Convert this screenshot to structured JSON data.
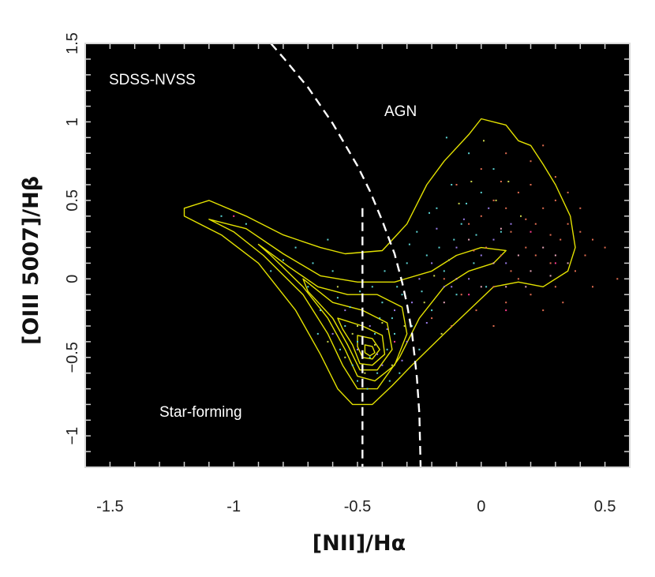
{
  "chart_data": {
    "type": "scatter",
    "title": "",
    "xlabel": "[NII]/Hα",
    "ylabel": "[OIII 5007]/Hβ",
    "xlim": [
      -1.6,
      0.6
    ],
    "ylim": [
      -1.2,
      1.5
    ],
    "x_ticks": [
      "-1.5",
      "-1",
      "-0.5",
      "0",
      "0.5"
    ],
    "x_tick_values": [
      -1.5,
      -1.0,
      -0.5,
      0.0,
      0.5
    ],
    "y_ticks": [
      "−1",
      "−0.5",
      "0",
      "0.5",
      "1",
      "1.5"
    ],
    "y_tick_values": [
      -1.0,
      -0.5,
      0.0,
      0.5,
      1.0,
      1.5
    ],
    "background": "#000000",
    "grid": false,
    "annotations": {
      "sample": "SDSS-NVSS",
      "agn_region": "AGN",
      "sf_region": "Star-forming"
    },
    "dividing_lines": [
      {
        "name": "kauffmann",
        "style": "dashed",
        "color": "#ffffff",
        "x": [
          -1.2,
          -1.0,
          -0.9,
          -0.8,
          -0.7,
          -0.6,
          -0.5,
          -0.45,
          -0.4,
          -0.35,
          -0.3,
          -0.25
        ],
        "y": [
          -1.2,
          -1.2,
          -1.2,
          -1.2,
          -1.2,
          -1.2,
          -1.2,
          -1.2,
          -1.2,
          -1.2,
          -1.2,
          -1.2
        ]
      },
      {
        "name": "kewley",
        "style": "dashed",
        "color": "#ffffff",
        "x": [
          -0.85,
          -0.8,
          -0.7,
          -0.6,
          -0.5,
          -0.45,
          -0.4,
          -0.35,
          -0.32,
          -0.3,
          -0.28,
          -0.26,
          -0.25,
          -0.245
        ],
        "y": [
          1.5,
          1.41,
          1.22,
          0.99,
          0.72,
          0.56,
          0.37,
          0.16,
          -0.02,
          -0.16,
          -0.34,
          -0.63,
          -0.86,
          -1.2
        ]
      },
      {
        "name": "vertical",
        "style": "dashed",
        "color": "#ffffff",
        "x": [
          -0.48,
          -0.48
        ],
        "y": [
          0.45,
          -1.2
        ]
      }
    ],
    "contours": {
      "color": "#e3e100",
      "levels": [
        [
          [
            -1.2,
            0.45
          ],
          [
            -1.1,
            0.5
          ],
          [
            -0.95,
            0.4
          ],
          [
            -0.8,
            0.28
          ],
          [
            -0.65,
            0.2
          ],
          [
            -0.55,
            0.16
          ],
          [
            -0.4,
            0.18
          ],
          [
            -0.3,
            0.35
          ],
          [
            -0.22,
            0.6
          ],
          [
            -0.15,
            0.75
          ],
          [
            -0.05,
            0.92
          ],
          [
            0.0,
            1.02
          ],
          [
            0.1,
            0.98
          ],
          [
            0.15,
            0.88
          ],
          [
            0.2,
            0.85
          ],
          [
            0.25,
            0.73
          ],
          [
            0.3,
            0.6
          ],
          [
            0.36,
            0.4
          ],
          [
            0.38,
            0.2
          ],
          [
            0.35,
            0.05
          ],
          [
            0.25,
            -0.05
          ],
          [
            0.15,
            -0.02
          ],
          [
            0.05,
            -0.05
          ],
          [
            -0.05,
            -0.2
          ],
          [
            -0.15,
            -0.35
          ],
          [
            -0.28,
            -0.55
          ],
          [
            -0.36,
            -0.68
          ],
          [
            -0.44,
            -0.8
          ],
          [
            -0.52,
            -0.8
          ],
          [
            -0.58,
            -0.7
          ],
          [
            -0.65,
            -0.48
          ],
          [
            -0.75,
            -0.2
          ],
          [
            -0.9,
            0.1
          ],
          [
            -1.05,
            0.28
          ],
          [
            -1.2,
            0.4
          ],
          [
            -1.2,
            0.45
          ]
        ],
        [
          [
            -1.1,
            0.38
          ],
          [
            -0.95,
            0.32
          ],
          [
            -0.8,
            0.16
          ],
          [
            -0.65,
            0.02
          ],
          [
            -0.5,
            -0.02
          ],
          [
            -0.35,
            -0.02
          ],
          [
            -0.2,
            0.05
          ],
          [
            -0.1,
            0.15
          ],
          [
            0.0,
            0.2
          ],
          [
            0.1,
            0.18
          ],
          [
            0.05,
            0.1
          ],
          [
            -0.05,
            0.05
          ],
          [
            -0.15,
            -0.05
          ],
          [
            -0.25,
            -0.25
          ],
          [
            -0.33,
            -0.5
          ],
          [
            -0.42,
            -0.7
          ],
          [
            -0.5,
            -0.7
          ],
          [
            -0.56,
            -0.55
          ],
          [
            -0.62,
            -0.35
          ],
          [
            -0.72,
            -0.1
          ],
          [
            -0.88,
            0.15
          ],
          [
            -1.0,
            0.3
          ],
          [
            -1.1,
            0.38
          ]
        ],
        [
          [
            -0.9,
            0.22
          ],
          [
            -0.78,
            0.08
          ],
          [
            -0.66,
            -0.05
          ],
          [
            -0.54,
            -0.1
          ],
          [
            -0.42,
            -0.1
          ],
          [
            -0.32,
            -0.18
          ],
          [
            -0.3,
            -0.35
          ],
          [
            -0.35,
            -0.55
          ],
          [
            -0.43,
            -0.65
          ],
          [
            -0.5,
            -0.62
          ],
          [
            -0.55,
            -0.45
          ],
          [
            -0.62,
            -0.25
          ],
          [
            -0.72,
            -0.05
          ],
          [
            -0.85,
            0.15
          ],
          [
            -0.9,
            0.22
          ]
        ],
        [
          [
            -0.72,
            0.0
          ],
          [
            -0.6,
            -0.15
          ],
          [
            -0.48,
            -0.2
          ],
          [
            -0.38,
            -0.28
          ],
          [
            -0.36,
            -0.45
          ],
          [
            -0.42,
            -0.58
          ],
          [
            -0.49,
            -0.58
          ],
          [
            -0.54,
            -0.42
          ],
          [
            -0.6,
            -0.25
          ],
          [
            -0.7,
            -0.08
          ],
          [
            -0.72,
            0.0
          ]
        ],
        [
          [
            -0.58,
            -0.25
          ],
          [
            -0.48,
            -0.3
          ],
          [
            -0.4,
            -0.36
          ],
          [
            -0.39,
            -0.48
          ],
          [
            -0.44,
            -0.55
          ],
          [
            -0.49,
            -0.54
          ],
          [
            -0.52,
            -0.42
          ],
          [
            -0.56,
            -0.32
          ],
          [
            -0.58,
            -0.25
          ]
        ],
        [
          [
            -0.5,
            -0.36
          ],
          [
            -0.44,
            -0.38
          ],
          [
            -0.41,
            -0.45
          ],
          [
            -0.44,
            -0.51
          ],
          [
            -0.48,
            -0.5
          ],
          [
            -0.5,
            -0.43
          ],
          [
            -0.5,
            -0.36
          ]
        ],
        [
          [
            -0.47,
            -0.42
          ],
          [
            -0.44,
            -0.43
          ],
          [
            -0.43,
            -0.47
          ],
          [
            -0.45,
            -0.49
          ],
          [
            -0.47,
            -0.47
          ],
          [
            -0.47,
            -0.42
          ]
        ]
      ]
    },
    "series": [
      {
        "color": "#5ad2d2",
        "points": [
          [
            -0.62,
            0.25
          ],
          [
            -0.58,
            -0.12
          ],
          [
            -0.55,
            -0.3
          ],
          [
            -0.5,
            -0.4
          ],
          [
            -0.48,
            -0.22
          ],
          [
            -0.45,
            -0.5
          ],
          [
            -0.43,
            -0.35
          ],
          [
            -0.42,
            -0.6
          ],
          [
            -0.4,
            -0.15
          ],
          [
            -0.38,
            -0.45
          ],
          [
            -0.36,
            -0.25
          ],
          [
            -0.34,
            -0.05
          ],
          [
            -0.33,
            -0.6
          ],
          [
            -0.3,
            0.1
          ],
          [
            -0.28,
            -0.3
          ],
          [
            -0.26,
            0.3
          ],
          [
            -0.25,
            -0.45
          ],
          [
            -0.22,
            0.15
          ],
          [
            -0.2,
            -0.2
          ],
          [
            -0.18,
            0.45
          ],
          [
            -0.15,
            0.05
          ],
          [
            -0.12,
            0.6
          ],
          [
            -0.1,
            -0.1
          ],
          [
            -0.08,
            0.35
          ],
          [
            -0.05,
            0.8
          ],
          [
            -0.03,
            0.1
          ],
          [
            0.0,
            0.55
          ],
          [
            0.02,
            -0.05
          ],
          [
            0.05,
            0.7
          ],
          [
            0.08,
            0.3
          ],
          [
            -0.7,
            -0.05
          ],
          [
            -0.68,
            0.1
          ],
          [
            -0.65,
            -0.2
          ],
          [
            -0.6,
            0.05
          ],
          [
            -0.57,
            -0.45
          ],
          [
            -0.52,
            -0.55
          ],
          [
            -0.5,
            -0.65
          ],
          [
            -0.46,
            -0.7
          ],
          [
            -0.44,
            -0.05
          ],
          [
            -0.41,
            -0.25
          ],
          [
            -0.39,
            0.05
          ],
          [
            -0.37,
            -0.65
          ],
          [
            -0.35,
            -0.35
          ],
          [
            -0.32,
            -0.1
          ],
          [
            -0.29,
            0.22
          ],
          [
            -0.24,
            -0.08
          ],
          [
            -0.21,
            0.42
          ],
          [
            -0.17,
            0.2
          ],
          [
            -0.14,
            0.9
          ],
          [
            -0.11,
            0.25
          ],
          [
            -0.06,
            0.48
          ],
          [
            -0.02,
            0.28
          ],
          [
            -0.8,
            0.12
          ],
          [
            -0.75,
            0.2
          ],
          [
            -0.85,
            0.05
          ],
          [
            -0.95,
            0.35
          ],
          [
            -1.05,
            0.4
          ],
          [
            -0.66,
            -0.35
          ],
          [
            -0.53,
            -0.18
          ],
          [
            -0.49,
            -0.08
          ]
        ]
      },
      {
        "color": "#9a7be8",
        "points": [
          [
            -0.5,
            -0.45
          ],
          [
            -0.45,
            -0.3
          ],
          [
            -0.4,
            -0.55
          ],
          [
            -0.35,
            -0.2
          ],
          [
            -0.3,
            -0.4
          ],
          [
            -0.25,
            0.0
          ],
          [
            -0.2,
            0.1
          ],
          [
            -0.15,
            -0.05
          ],
          [
            -0.1,
            0.2
          ],
          [
            -0.05,
            0.0
          ],
          [
            0.0,
            0.15
          ],
          [
            0.05,
            0.25
          ],
          [
            0.1,
            0.1
          ],
          [
            -0.42,
            -0.48
          ],
          [
            -0.38,
            -0.32
          ],
          [
            -0.32,
            -0.52
          ],
          [
            -0.28,
            -0.15
          ],
          [
            -0.22,
            -0.28
          ],
          [
            -0.18,
            0.32
          ],
          [
            -0.12,
            -0.05
          ],
          [
            -0.07,
            0.38
          ],
          [
            0.03,
            0.45
          ],
          [
            0.12,
            0.35
          ],
          [
            -0.55,
            -0.2
          ],
          [
            -0.6,
            -0.35
          ]
        ]
      },
      {
        "color": "#c8d24a",
        "points": [
          [
            -0.55,
            -0.5
          ],
          [
            -0.5,
            -0.3
          ],
          [
            -0.47,
            -0.6
          ],
          [
            -0.43,
            -0.42
          ],
          [
            -0.4,
            -0.28
          ],
          [
            -0.36,
            -0.55
          ],
          [
            -0.31,
            -0.3
          ],
          [
            -0.27,
            -0.48
          ],
          [
            -0.23,
            -0.15
          ],
          [
            -0.19,
            0.02
          ],
          [
            -0.16,
            -0.35
          ],
          [
            -0.13,
            0.12
          ],
          [
            -0.09,
            0.48
          ],
          [
            -0.04,
            0.62
          ],
          [
            0.01,
            0.88
          ],
          [
            0.06,
            0.5
          ],
          [
            0.11,
            0.62
          ],
          [
            0.16,
            0.4
          ],
          [
            -0.62,
            -0.4
          ],
          [
            -0.58,
            -0.05
          ],
          [
            -0.52,
            -0.35
          ]
        ]
      },
      {
        "color": "#e06c50",
        "points": [
          [
            -0.05,
            0.35
          ],
          [
            0.0,
            0.4
          ],
          [
            0.02,
            0.2
          ],
          [
            0.05,
            0.5
          ],
          [
            0.08,
            0.15
          ],
          [
            0.1,
            0.45
          ],
          [
            0.12,
            0.3
          ],
          [
            0.15,
            0.55
          ],
          [
            0.18,
            0.2
          ],
          [
            0.2,
            0.6
          ],
          [
            0.22,
            0.35
          ],
          [
            0.25,
            0.45
          ],
          [
            0.28,
            0.1
          ],
          [
            0.3,
            0.5
          ],
          [
            0.32,
            0.25
          ],
          [
            0.35,
            0.35
          ],
          [
            0.38,
            0.05
          ],
          [
            0.4,
            0.3
          ],
          [
            0.42,
            0.15
          ],
          [
            0.45,
            0.25
          ],
          [
            0.5,
            0.2
          ],
          [
            0.55,
            0.0
          ],
          [
            0.15,
            0.0
          ],
          [
            0.2,
            -0.1
          ],
          [
            0.25,
            -0.2
          ],
          [
            0.3,
            -0.05
          ],
          [
            0.1,
            -0.15
          ],
          [
            0.05,
            -0.05
          ],
          [
            -0.02,
            -0.2
          ],
          [
            -0.08,
            -0.1
          ],
          [
            -0.12,
            -0.3
          ],
          [
            -0.15,
            0.0
          ],
          [
            -0.2,
            -0.25
          ],
          [
            0.0,
            0.7
          ],
          [
            0.1,
            0.8
          ],
          [
            0.2,
            0.75
          ],
          [
            0.3,
            0.65
          ],
          [
            0.25,
            0.85
          ],
          [
            -0.1,
            0.6
          ],
          [
            0.35,
            0.55
          ],
          [
            0.05,
            -0.3
          ],
          [
            0.12,
            0.05
          ],
          [
            0.18,
            0.38
          ],
          [
            0.28,
            0.28
          ],
          [
            0.4,
            0.45
          ],
          [
            0.45,
            -0.05
          ],
          [
            0.33,
            -0.15
          ],
          [
            0.08,
            0.62
          ],
          [
            -0.03,
            0.18
          ],
          [
            0.22,
            0.15
          ]
        ]
      },
      {
        "color": "#e7a5b8",
        "points": [
          [
            -0.1,
            0.0
          ],
          [
            0.0,
            -0.05
          ],
          [
            0.05,
            0.1
          ],
          [
            0.1,
            -0.05
          ],
          [
            0.15,
            0.15
          ],
          [
            0.2,
            0.05
          ],
          [
            0.25,
            0.2
          ],
          [
            0.3,
            0.15
          ],
          [
            -0.15,
            -0.15
          ],
          [
            -0.05,
            0.25
          ],
          [
            0.18,
            -0.05
          ],
          [
            0.28,
            0.02
          ],
          [
            0.08,
            0.32
          ],
          [
            0.35,
            0.1
          ]
        ]
      },
      {
        "color": "#ff3b8e",
        "points": [
          [
            -1.0,
            0.4
          ],
          [
            0.2,
            0.3
          ],
          [
            0.1,
            -0.2
          ],
          [
            -0.35,
            -0.4
          ],
          [
            0.3,
            0.1
          ],
          [
            -0.05,
            -0.1
          ]
        ]
      }
    ]
  }
}
